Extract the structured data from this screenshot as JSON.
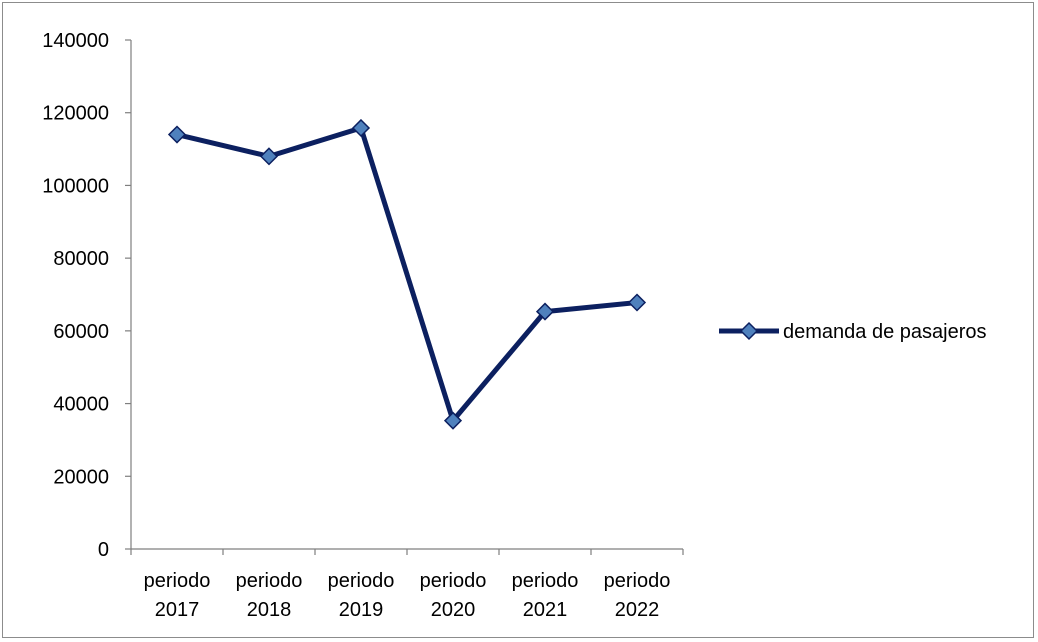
{
  "chart_data": {
    "type": "line",
    "categories": [
      [
        "periodo",
        "2017"
      ],
      [
        "periodo",
        "2018"
      ],
      [
        "periodo",
        "2019"
      ],
      [
        "periodo",
        "2020"
      ],
      [
        "periodo",
        "2021"
      ],
      [
        "periodo",
        "2022"
      ]
    ],
    "series": [
      {
        "name": "demanda de pasajeros",
        "values": [
          114000,
          108000,
          115800,
          35300,
          65300,
          67800
        ],
        "line_color": "#0c2060",
        "marker_color": "#4f81bd",
        "marker": "diamond"
      }
    ],
    "ylim": [
      0,
      140000
    ],
    "yticks": [
      "0",
      "20000",
      "40000",
      "60000",
      "80000",
      "100000",
      "120000",
      "140000"
    ],
    "grid": false,
    "legend_position": "right"
  }
}
